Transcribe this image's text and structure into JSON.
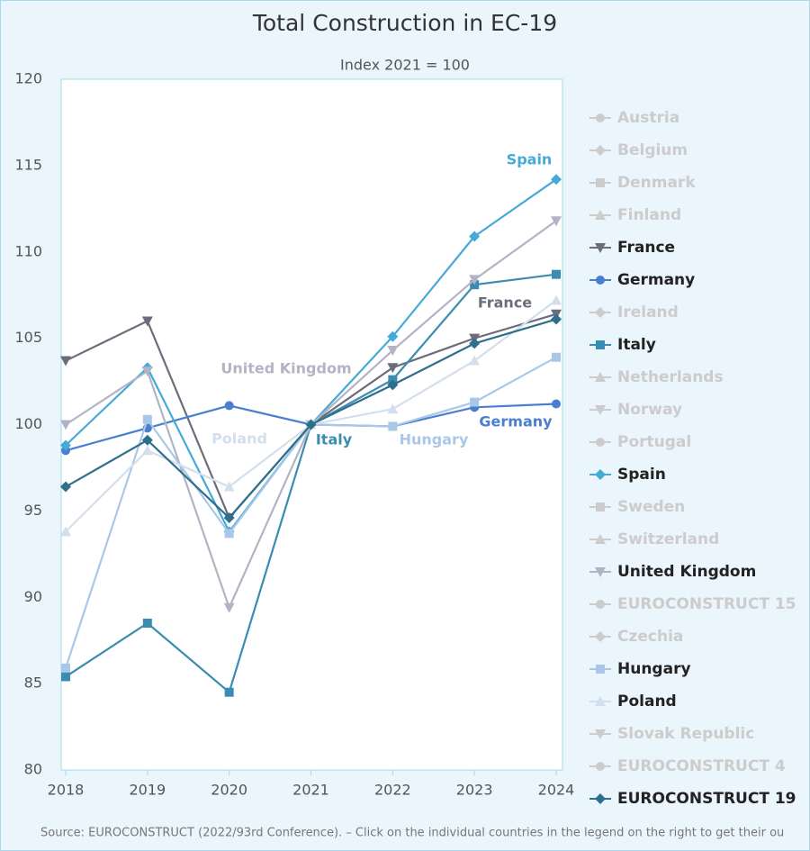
{
  "chart_data": {
    "type": "line",
    "title": "Total Construction in EC-19",
    "subtitle": "Index 2021 = 100",
    "x": [
      2018,
      2019,
      2020,
      2021,
      2022,
      2023,
      2024
    ],
    "xlim": [
      2018,
      2024
    ],
    "xticks": [
      2018,
      2019,
      2020,
      2021,
      2022,
      2023,
      2024
    ],
    "ylim": [
      80,
      120
    ],
    "yticks": [
      80,
      85,
      90,
      95,
      100,
      105,
      110,
      115,
      120
    ],
    "grid": false,
    "legend": "right",
    "source": "Source: EUROCONSTRUCT (2022/93rd Conference). – Click on the individual countries in the legend on the right to get their ou",
    "series": [
      {
        "name": "Austria",
        "marker": "circle",
        "color": "#cccccc",
        "visible": false
      },
      {
        "name": "Belgium",
        "marker": "diamond",
        "color": "#cccccc",
        "visible": false
      },
      {
        "name": "Denmark",
        "marker": "square",
        "color": "#cccccc",
        "visible": false
      },
      {
        "name": "Finland",
        "marker": "triangle",
        "color": "#cccccc",
        "visible": false
      },
      {
        "name": "France",
        "marker": "triangle-down",
        "color": "#6b6e7a",
        "visible": true,
        "values": [
          103.7,
          106.0,
          94.6,
          100,
          103.3,
          105.0,
          106.4
        ]
      },
      {
        "name": "Germany",
        "marker": "circle",
        "color": "#4a7fd0",
        "visible": true,
        "values": [
          98.5,
          99.8,
          101.1,
          100,
          99.9,
          101.0,
          101.2
        ]
      },
      {
        "name": "Ireland",
        "marker": "diamond",
        "color": "#cccccc",
        "visible": false
      },
      {
        "name": "Italy",
        "marker": "square",
        "color": "#3a8db0",
        "visible": true,
        "values": [
          85.4,
          88.5,
          84.5,
          100,
          102.6,
          108.1,
          108.7
        ]
      },
      {
        "name": "Netherlands",
        "marker": "triangle",
        "color": "#cccccc",
        "visible": false
      },
      {
        "name": "Norway",
        "marker": "triangle-down",
        "color": "#cccccc",
        "visible": false
      },
      {
        "name": "Portugal",
        "marker": "circle",
        "color": "#cccccc",
        "visible": false
      },
      {
        "name": "Spain",
        "marker": "diamond",
        "color": "#45aad8",
        "visible": true,
        "values": [
          98.8,
          103.3,
          93.8,
          100,
          105.1,
          110.9,
          114.2
        ]
      },
      {
        "name": "Sweden",
        "marker": "square",
        "color": "#cccccc",
        "visible": false
      },
      {
        "name": "Switzerland",
        "marker": "triangle",
        "color": "#cccccc",
        "visible": false
      },
      {
        "name": "United Kingdom",
        "marker": "triangle-down",
        "color": "#b3b3c6",
        "visible": true,
        "values": [
          100.0,
          103.1,
          89.4,
          100,
          104.3,
          108.4,
          111.8
        ]
      },
      {
        "name": "EUROCONSTRUCT 15",
        "marker": "circle",
        "color": "#cccccc",
        "visible": false
      },
      {
        "name": "Czechia",
        "marker": "diamond",
        "color": "#cccccc",
        "visible": false
      },
      {
        "name": "Hungary",
        "marker": "square",
        "color": "#a9c8e8",
        "visible": true,
        "values": [
          85.9,
          100.3,
          93.7,
          100,
          99.9,
          101.3,
          103.9
        ]
      },
      {
        "name": "Poland",
        "marker": "triangle",
        "color": "#d3dfed",
        "visible": true,
        "values": [
          93.8,
          98.5,
          96.4,
          100,
          100.9,
          103.7,
          107.2
        ]
      },
      {
        "name": "Slovak Republic",
        "marker": "triangle-down",
        "color": "#cccccc",
        "visible": false
      },
      {
        "name": "EUROCONSTRUCT 4",
        "marker": "circle",
        "color": "#cccccc",
        "visible": false
      },
      {
        "name": "EUROCONSTRUCT 19",
        "marker": "diamond",
        "color": "#2f6f8c",
        "visible": true,
        "values": [
          96.4,
          99.1,
          94.6,
          100,
          102.3,
          104.7,
          106.1
        ]
      }
    ]
  }
}
